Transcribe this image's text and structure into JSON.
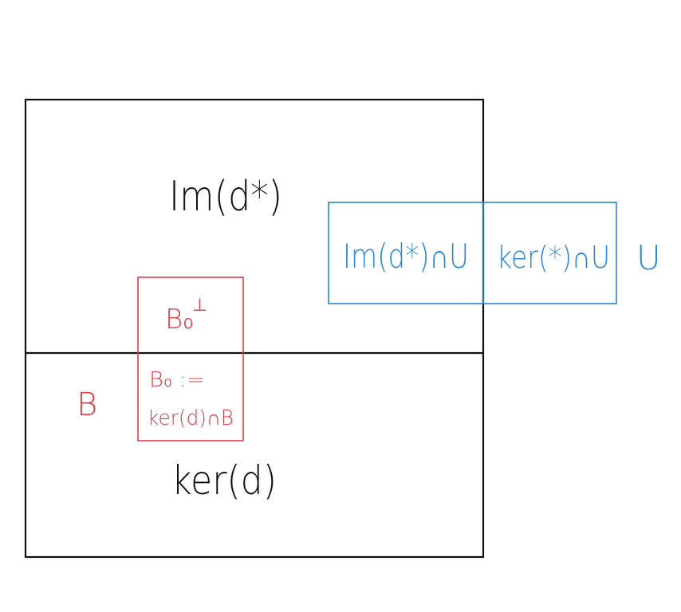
{
  "labels": {
    "im_d_star": "Im(d*)",
    "ker_d": "ker(d)",
    "B": "B",
    "B0_perp_base": "B₀",
    "B0_perp_sup": "⊥",
    "B0_def_line1": "B₀ :=",
    "B0_def_line2": "ker(d)∩B",
    "im_d_star_cap_U": "Im(d*)∩U",
    "ker_star_cap_U": "ker(*)∩U",
    "U": "U"
  },
  "colors": {
    "black": "#111111",
    "red": "#e03a45",
    "blue": "#2a86d6"
  }
}
